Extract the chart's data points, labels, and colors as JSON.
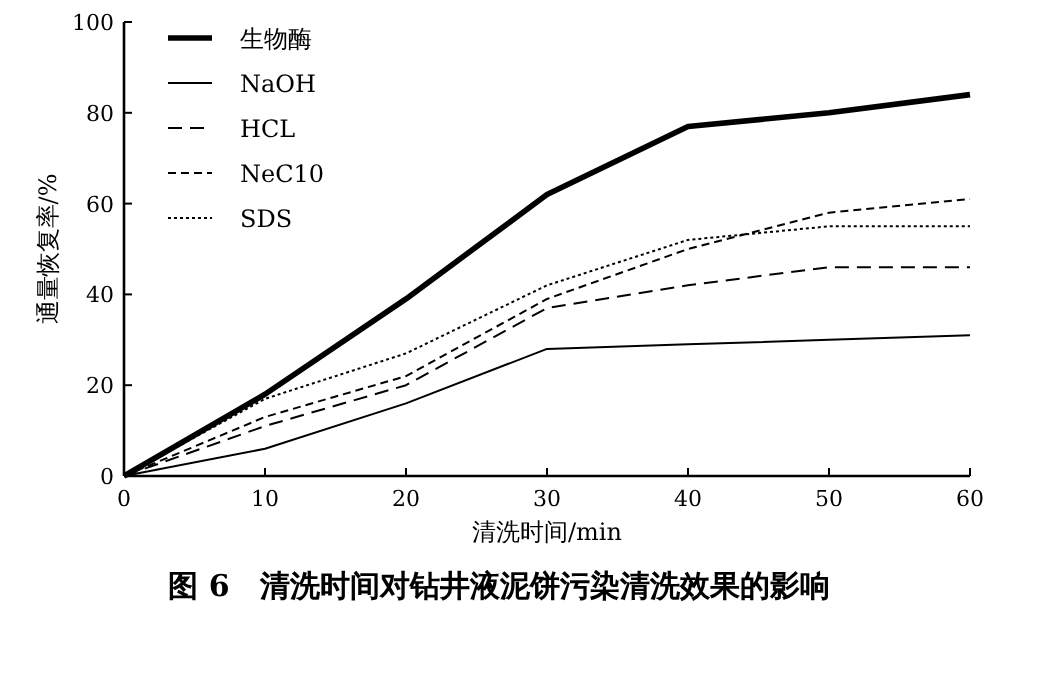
{
  "chart_data": {
    "type": "line",
    "xlabel": "清洗时间/min",
    "ylabel": "通量恢复率/%",
    "x": [
      0,
      10,
      20,
      30,
      40,
      50,
      60
    ],
    "series": [
      {
        "name": "生物酶",
        "color": "#000000",
        "line_style": "solid",
        "values": [
          0,
          18,
          39,
          62,
          77,
          80,
          84
        ]
      },
      {
        "name": "NaOH",
        "color": "#000000",
        "line_style": "solid",
        "values": [
          0,
          6,
          16,
          28,
          29,
          30,
          31
        ]
      },
      {
        "name": "HCL",
        "color": "#000000",
        "line_style": "dashed",
        "values": [
          0,
          11,
          20,
          37,
          42,
          46,
          46
        ]
      },
      {
        "name": "NeC10",
        "color": "#000000",
        "line_style": "dashed",
        "values": [
          0,
          13,
          22,
          39,
          50,
          58,
          61
        ]
      },
      {
        "name": "SDS",
        "color": "#000000",
        "line_style": "dotted",
        "values": [
          0,
          17,
          27,
          42,
          52,
          55,
          55
        ]
      }
    ],
    "xlim": [
      0,
      60
    ],
    "xticks": [
      0,
      10,
      20,
      30,
      40,
      50,
      60
    ],
    "ylim": [
      0,
      100
    ],
    "yticks": [
      0,
      20,
      40,
      60,
      80,
      100
    ],
    "grid": false,
    "legend": "top left",
    "marker": "none",
    "annotations": [
      "图 6　清洗时间对钻井液泥饼污染清洗效果的影响"
    ]
  }
}
